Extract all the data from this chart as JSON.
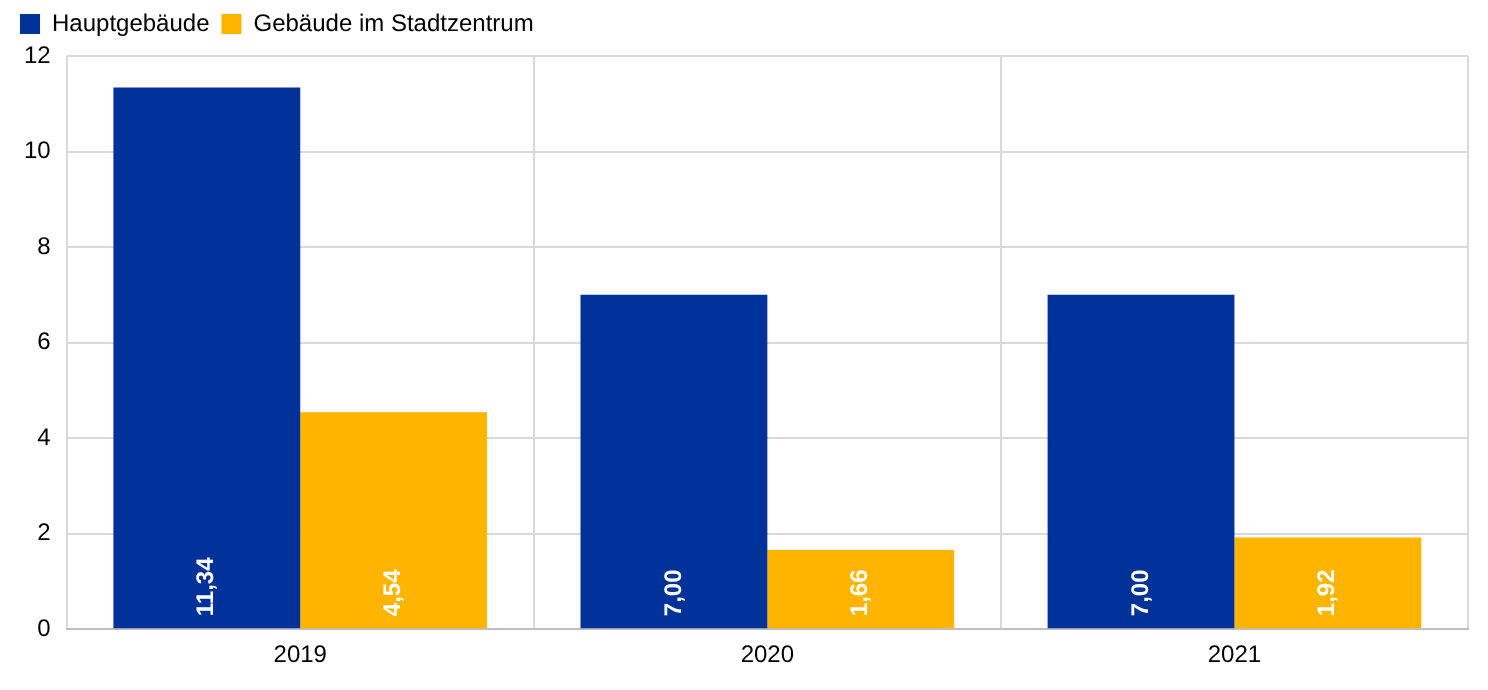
{
  "chart_data": {
    "type": "bar",
    "categories": [
      "2019",
      "2020",
      "2021"
    ],
    "series": [
      {
        "name": "Hauptgebäude",
        "color": "#003299",
        "values": [
          11.34,
          7.0,
          7.0
        ],
        "value_labels": [
          "11,34",
          "7,00",
          "7,00"
        ]
      },
      {
        "name": "Gebäude im Stadtzentrum",
        "color": "#ffb400",
        "values": [
          4.54,
          1.66,
          1.92
        ],
        "value_labels": [
          "4,54",
          "1,66",
          "1,92"
        ]
      }
    ],
    "ylim": [
      0,
      12
    ],
    "yticks": [
      0,
      2,
      4,
      6,
      8,
      10,
      12
    ],
    "grid": true,
    "legend": "top left"
  }
}
